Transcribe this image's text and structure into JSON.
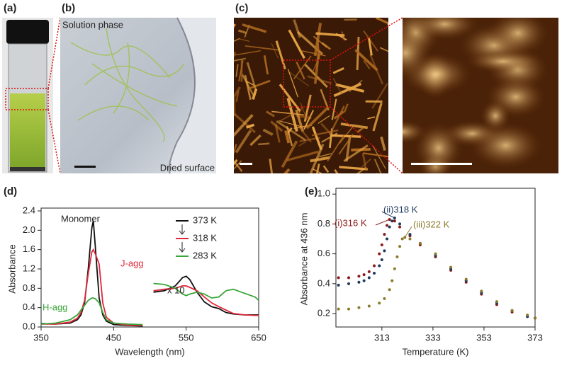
{
  "panels": [
    "(a)",
    "(b)",
    "(c)",
    "(d)",
    "(e)"
  ],
  "photo_labels": {
    "solution": "Solution phase",
    "dried": "Dried  surface"
  },
  "chart_data": [
    {
      "type": "line",
      "xlabel": "Wavelength (nm)",
      "ylabel": "Absorbance",
      "xlim": [
        350,
        650
      ],
      "xticks": [
        350,
        450,
        550,
        650
      ],
      "ylim": [
        0,
        2.4
      ],
      "yticks": [
        {
          "value": 0,
          "label": "0.0"
        },
        0.4,
        0.8,
        1.2,
        1.6,
        {
          "value": 2,
          "label": "2.0"
        },
        2.4
      ],
      "annotations": [
        "Monomer",
        "J-agg",
        "H-agg",
        "x 10"
      ],
      "x": [
        350,
        370,
        390,
        400,
        405,
        410,
        415,
        420,
        422,
        425,
        430,
        435,
        440,
        450,
        470,
        490,
        500,
        505,
        520,
        535,
        545,
        550,
        555,
        565,
        575,
        585,
        595,
        605,
        615,
        630,
        645,
        650
      ],
      "series": [
        {
          "name": "373 K",
          "color": "#111111",
          "values": [
            0.07,
            0.06,
            0.08,
            0.15,
            0.25,
            0.5,
            1.2,
            2.05,
            2.2,
            1.6,
            0.6,
            0.25,
            0.12,
            0.05,
            0.03,
            0.02,
            null,
            0.72,
            0.75,
            0.85,
            1.02,
            1.05,
            0.98,
            0.72,
            0.52,
            0.42,
            0.38,
            0.3,
            0.27,
            0.25,
            0.25,
            0.25
          ]
        },
        {
          "name": "318 K",
          "color": "#e0283a",
          "values": [
            0.06,
            0.06,
            0.1,
            0.18,
            0.3,
            0.55,
            1.1,
            1.55,
            1.6,
            1.5,
            1.3,
            0.5,
            0.2,
            0.08,
            0.04,
            0.03,
            null,
            0.75,
            0.78,
            0.8,
            0.85,
            0.85,
            0.82,
            0.75,
            0.62,
            0.5,
            0.42,
            0.35,
            0.28,
            0.25,
            0.24,
            0.24
          ]
        },
        {
          "name": "283 K",
          "color": "#3aa53a",
          "values": [
            0.06,
            0.08,
            0.15,
            0.25,
            0.35,
            0.45,
            0.55,
            0.6,
            0.6,
            0.58,
            0.5,
            0.3,
            0.15,
            0.08,
            0.06,
            0.05,
            null,
            0.9,
            0.88,
            0.8,
            0.68,
            0.65,
            0.68,
            0.72,
            0.68,
            0.6,
            0.62,
            0.75,
            0.78,
            0.7,
            0.62,
            0.55
          ]
        }
      ]
    },
    {
      "type": "scatter",
      "xlabel": "Temperature (K)",
      "ylabel": "Absorbance at 436 nm",
      "xlim": [
        295,
        373
      ],
      "xticks": [
        313,
        333,
        353,
        373
      ],
      "ylim": [
        0.11,
        1.02
      ],
      "yticks": [
        0.2,
        0.4,
        0.6,
        0.8,
        {
          "value": 1,
          "label": "1.0"
        }
      ],
      "series": [
        {
          "name": "(i)316 K",
          "color": "#8b1a1a",
          "x": [
            296,
            300,
            304,
            306,
            308,
            310,
            312,
            313,
            314,
            315,
            316,
            318,
            320,
            324,
            328,
            334,
            340,
            346,
            352,
            358,
            364,
            370,
            373
          ],
          "values": [
            0.44,
            0.44,
            0.45,
            0.46,
            0.48,
            0.52,
            0.6,
            0.66,
            0.73,
            0.79,
            0.83,
            0.82,
            0.78,
            0.72,
            0.66,
            0.58,
            0.49,
            0.41,
            0.33,
            0.26,
            0.21,
            0.18,
            0.17
          ]
        },
        {
          "name": "(ii)318 K",
          "color": "#1f3a5f",
          "x": [
            296,
            300,
            304,
            306,
            308,
            310,
            312,
            313,
            314,
            315,
            316,
            317,
            318,
            320,
            324,
            328,
            334,
            340,
            346,
            352,
            358,
            364,
            370,
            373
          ],
          "values": [
            0.39,
            0.4,
            0.41,
            0.42,
            0.44,
            0.47,
            0.52,
            0.56,
            0.62,
            0.7,
            0.78,
            0.82,
            0.84,
            0.8,
            0.73,
            0.67,
            0.59,
            0.5,
            0.42,
            0.34,
            0.27,
            0.22,
            0.18,
            0.17
          ]
        },
        {
          "name": "(iii)322 K",
          "color": "#8b7a2a",
          "x": [
            296,
            300,
            304,
            308,
            312,
            314,
            316,
            317,
            318,
            319,
            320,
            321,
            322,
            324,
            328,
            334,
            340,
            346,
            352,
            358,
            364,
            370,
            373
          ],
          "values": [
            0.23,
            0.23,
            0.24,
            0.25,
            0.27,
            0.3,
            0.36,
            0.42,
            0.5,
            0.58,
            0.65,
            0.7,
            0.71,
            0.7,
            0.67,
            0.6,
            0.51,
            0.43,
            0.35,
            0.28,
            0.22,
            0.19,
            0.17
          ]
        }
      ]
    }
  ]
}
